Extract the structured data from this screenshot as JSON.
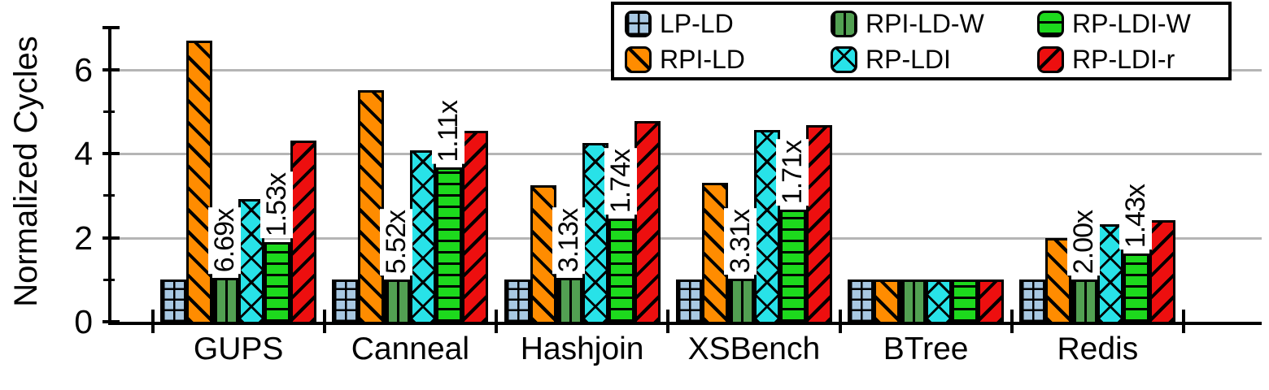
{
  "chart_data": {
    "type": "bar",
    "title": "",
    "ylabel": "Normalized Cycles",
    "xlabel": "",
    "ylim": [
      0,
      7
    ],
    "grid": true,
    "gridlines": [
      2,
      4,
      6
    ],
    "y_axis": {
      "tick_labels": [
        "0",
        "2",
        "4",
        "6"
      ],
      "tick_values": [
        0,
        2,
        4,
        6
      ],
      "minor_tick_values": [
        1,
        3,
        5
      ],
      "top_tick_value": 7
    },
    "categories": [
      "GUPS",
      "Canneal",
      "Hashjoin",
      "XSBench",
      "BTree",
      "Redis"
    ],
    "series": [
      {
        "name": "LP-LD",
        "color": "#a8c8e2",
        "hatch": "grid",
        "values": [
          1.0,
          1.0,
          1.0,
          1.0,
          1.0,
          1.0
        ]
      },
      {
        "name": "RPI-LD",
        "color": "#ff8c00",
        "hatch": "backslash",
        "values": [
          6.69,
          5.52,
          3.25,
          3.31,
          1.0,
          2.0
        ]
      },
      {
        "name": "RPI-LD-W",
        "color": "#52a052",
        "hatch": "vertical",
        "values": [
          1.04,
          1.0,
          1.04,
          1.03,
          1.0,
          1.0
        ]
      },
      {
        "name": "RP-LDI",
        "color": "#28e2e8",
        "hatch": "cross",
        "values": [
          2.92,
          4.08,
          4.25,
          4.57,
          1.0,
          2.32
        ]
      },
      {
        "name": "RP-LDI-W",
        "color": "#1dd91d",
        "hatch": "horizontal",
        "values": [
          1.9,
          3.67,
          2.45,
          2.66,
          1.0,
          1.62
        ]
      },
      {
        "name": "RP-LDI-r",
        "color": "#ed0f0f",
        "hatch": "slash",
        "values": [
          4.31,
          4.55,
          4.78,
          4.68,
          1.0,
          2.42
        ]
      }
    ],
    "annotations": [
      {
        "category": "GUPS",
        "series": "RPI-LD-W",
        "text": "6.69x"
      },
      {
        "category": "GUPS",
        "series": "RP-LDI-W",
        "text": "1.53x"
      },
      {
        "category": "Canneal",
        "series": "RPI-LD-W",
        "text": "5.52x"
      },
      {
        "category": "Canneal",
        "series": "RP-LDI-W",
        "text": "1.11x"
      },
      {
        "category": "Hashjoin",
        "series": "RPI-LD-W",
        "text": "3.13x"
      },
      {
        "category": "Hashjoin",
        "series": "RP-LDI-W",
        "text": "1.74x"
      },
      {
        "category": "XSBench",
        "series": "RPI-LD-W",
        "text": "3.31x"
      },
      {
        "category": "XSBench",
        "series": "RP-LDI-W",
        "text": "1.71x"
      },
      {
        "category": "Redis",
        "series": "RPI-LD-W",
        "text": "2.00x"
      },
      {
        "category": "Redis",
        "series": "RP-LDI-W",
        "text": "1.43x"
      }
    ],
    "legend": {
      "position": "top-right",
      "border_color": "#000000",
      "order_row_major": [
        "LP-LD",
        "RPI-LD-W",
        "RP-LDI-W",
        "RPI-LD",
        "RP-LDI",
        "RP-LDI-r"
      ]
    },
    "colors": {
      "gridline": "#b5b5b5",
      "axis": "#000000",
      "annotation_background": "#ffffff"
    }
  }
}
